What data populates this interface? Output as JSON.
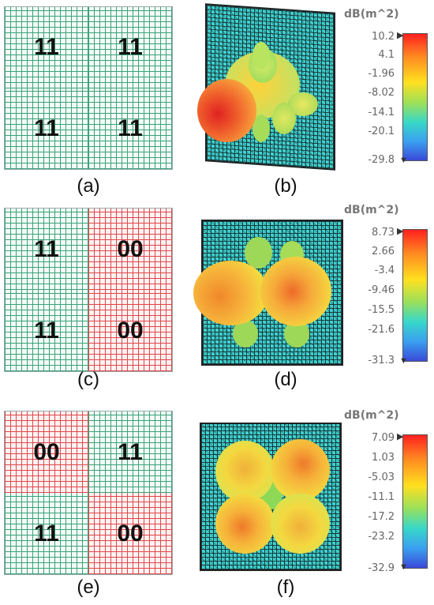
{
  "panels": {
    "a": {
      "label": "(a)",
      "codes": [
        "11",
        "11",
        "11",
        "11"
      ]
    },
    "b": {
      "label": "(b)"
    },
    "c": {
      "label": "(c)",
      "codes": [
        "11",
        "00",
        "11",
        "00"
      ]
    },
    "d": {
      "label": "(d)"
    },
    "e": {
      "label": "(e)",
      "codes": [
        "00",
        "11",
        "11",
        "00"
      ]
    },
    "f": {
      "label": "(f)"
    }
  },
  "colorbars": [
    {
      "title": "dB(m^2)",
      "ticks": [
        "10.2",
        "4.1",
        "-1.96",
        "-8.02",
        "-14.1",
        "-20.1",
        "-29.8"
      ]
    },
    {
      "title": "dB(m^2)",
      "ticks": [
        "8.73",
        "2.66",
        "-3.4",
        "-9.46",
        "-15.5",
        "-21.6",
        "-31.3"
      ]
    },
    {
      "title": "dB(m^2)",
      "ticks": [
        "7.09",
        "1.03",
        "-5.03",
        "-11.1",
        "-17.2",
        "-23.2",
        "-32.9"
      ]
    }
  ],
  "colors": {
    "code_11": "#3aa377",
    "code_00": "#e0474a",
    "plate": "#3fd4d4"
  }
}
